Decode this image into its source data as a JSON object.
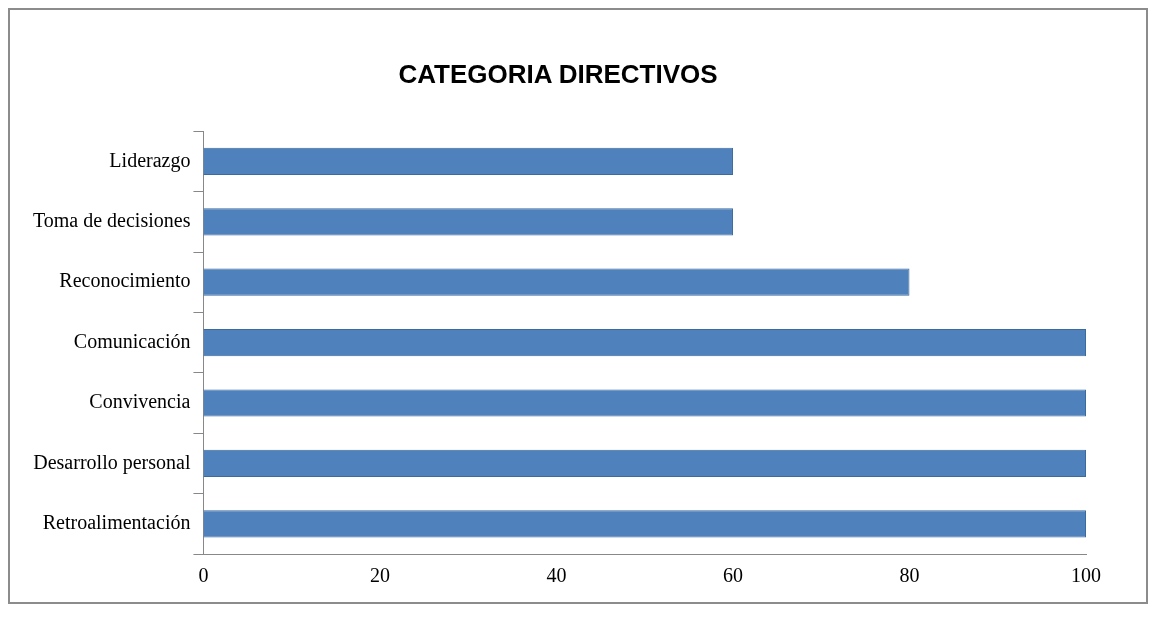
{
  "chart_data": {
    "type": "bar",
    "orientation": "horizontal",
    "title": "CATEGORIA DIRECTIVOS",
    "categories": [
      "Liderazgo",
      "Toma de decisiones",
      "Reconocimiento",
      "Comunicación",
      "Convivencia",
      "Desarrollo personal",
      "Retroalimentación"
    ],
    "values": [
      60,
      60,
      80,
      100,
      100,
      100,
      100
    ],
    "color": "#4f81bd",
    "xlim": [
      0,
      100
    ],
    "xticks": [
      0,
      20,
      40,
      60,
      80,
      100
    ]
  }
}
